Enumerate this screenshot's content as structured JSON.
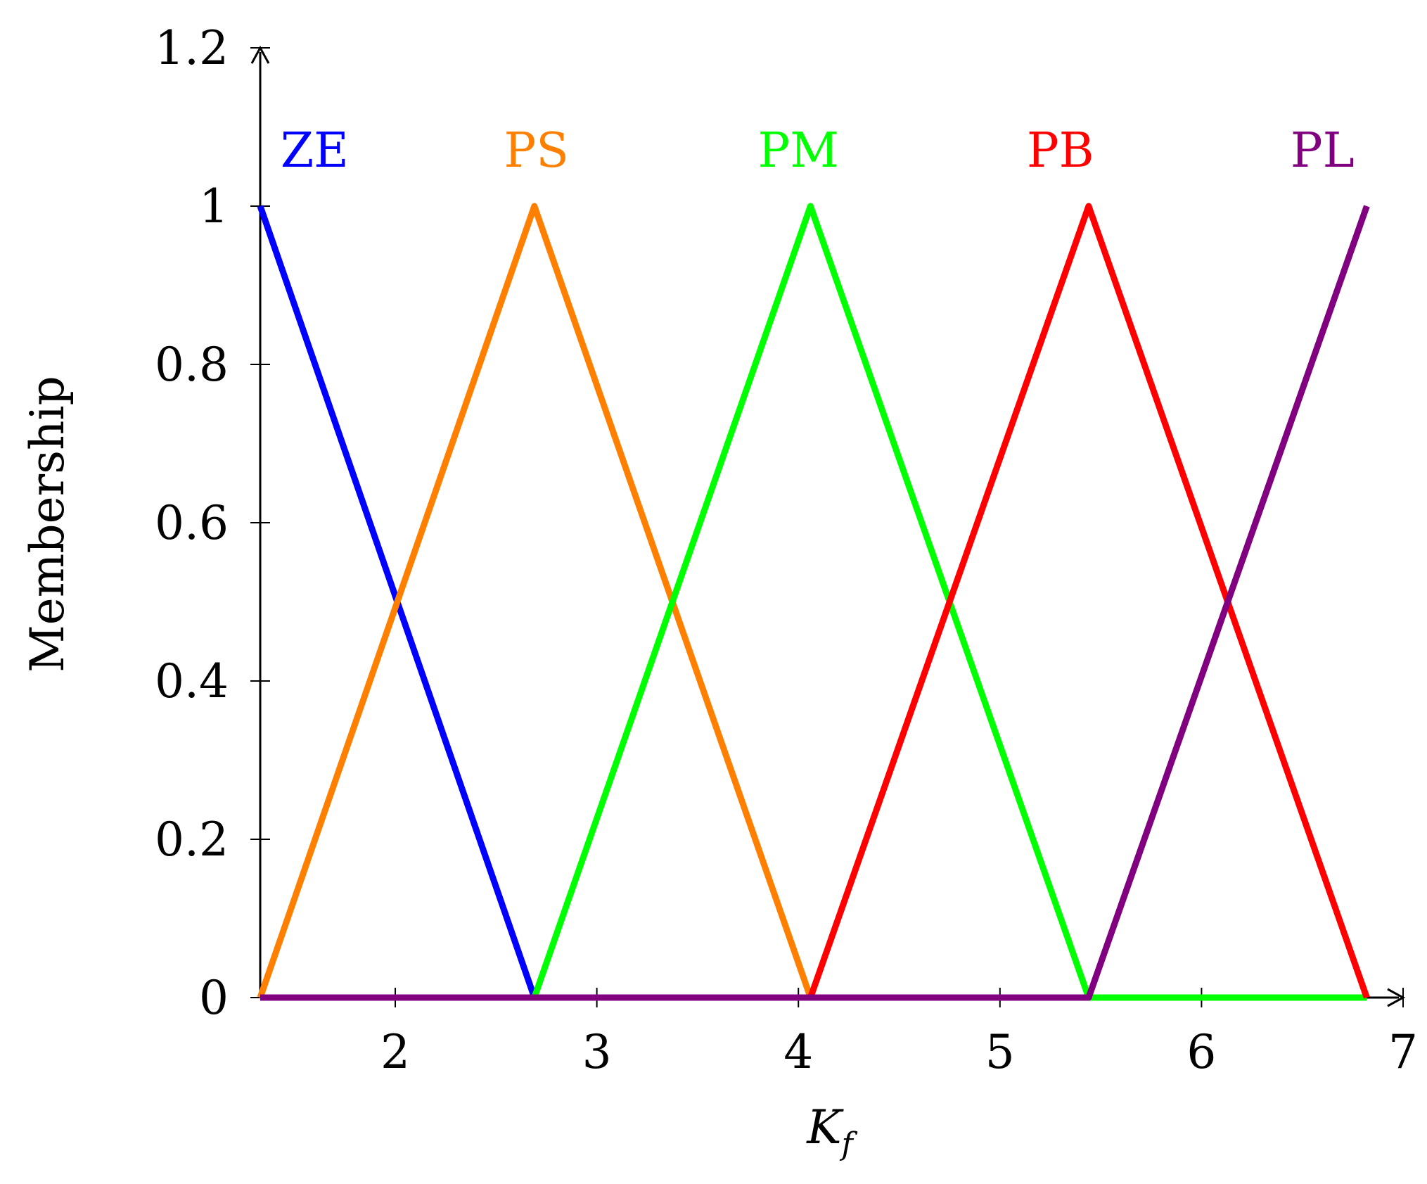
{
  "chart_data": {
    "type": "line",
    "xlabel": "K",
    "xlabel_subscript": "f",
    "ylabel": "Membership",
    "xlim": [
      1.33,
      7.0
    ],
    "ylim": [
      0,
      1.2
    ],
    "x_ticks": [
      2,
      3,
      4,
      5,
      6,
      7
    ],
    "y_ticks": [
      0,
      0.2,
      0.4,
      0.6,
      0.8,
      1,
      1.2
    ],
    "grid": false,
    "series": [
      {
        "name": "ZE",
        "color": "#0000ff",
        "label_at": [
          1.6,
          1.05
        ],
        "x": [
          1.33,
          2.69,
          6.82
        ],
        "y": [
          1,
          0,
          0
        ]
      },
      {
        "name": "PS",
        "color": "#ff8000",
        "label_at": [
          2.7,
          1.05
        ],
        "x": [
          1.33,
          2.69,
          4.06,
          6.82
        ],
        "y": [
          0,
          1,
          0,
          0
        ]
      },
      {
        "name": "PM",
        "color": "#00ff00",
        "label_at": [
          4.0,
          1.05
        ],
        "x": [
          1.33,
          2.69,
          4.06,
          5.44,
          6.82
        ],
        "y": [
          0,
          0,
          1,
          0,
          0
        ]
      },
      {
        "name": "PB",
        "color": "#ff0000",
        "label_at": [
          5.3,
          1.05
        ],
        "x": [
          1.33,
          4.06,
          5.44,
          6.82
        ],
        "y": [
          0,
          0,
          1,
          0
        ]
      },
      {
        "name": "PL",
        "color": "#800080",
        "label_at": [
          6.6,
          1.05
        ],
        "x": [
          1.33,
          5.44,
          6.82
        ],
        "y": [
          0,
          0,
          1
        ]
      }
    ]
  }
}
